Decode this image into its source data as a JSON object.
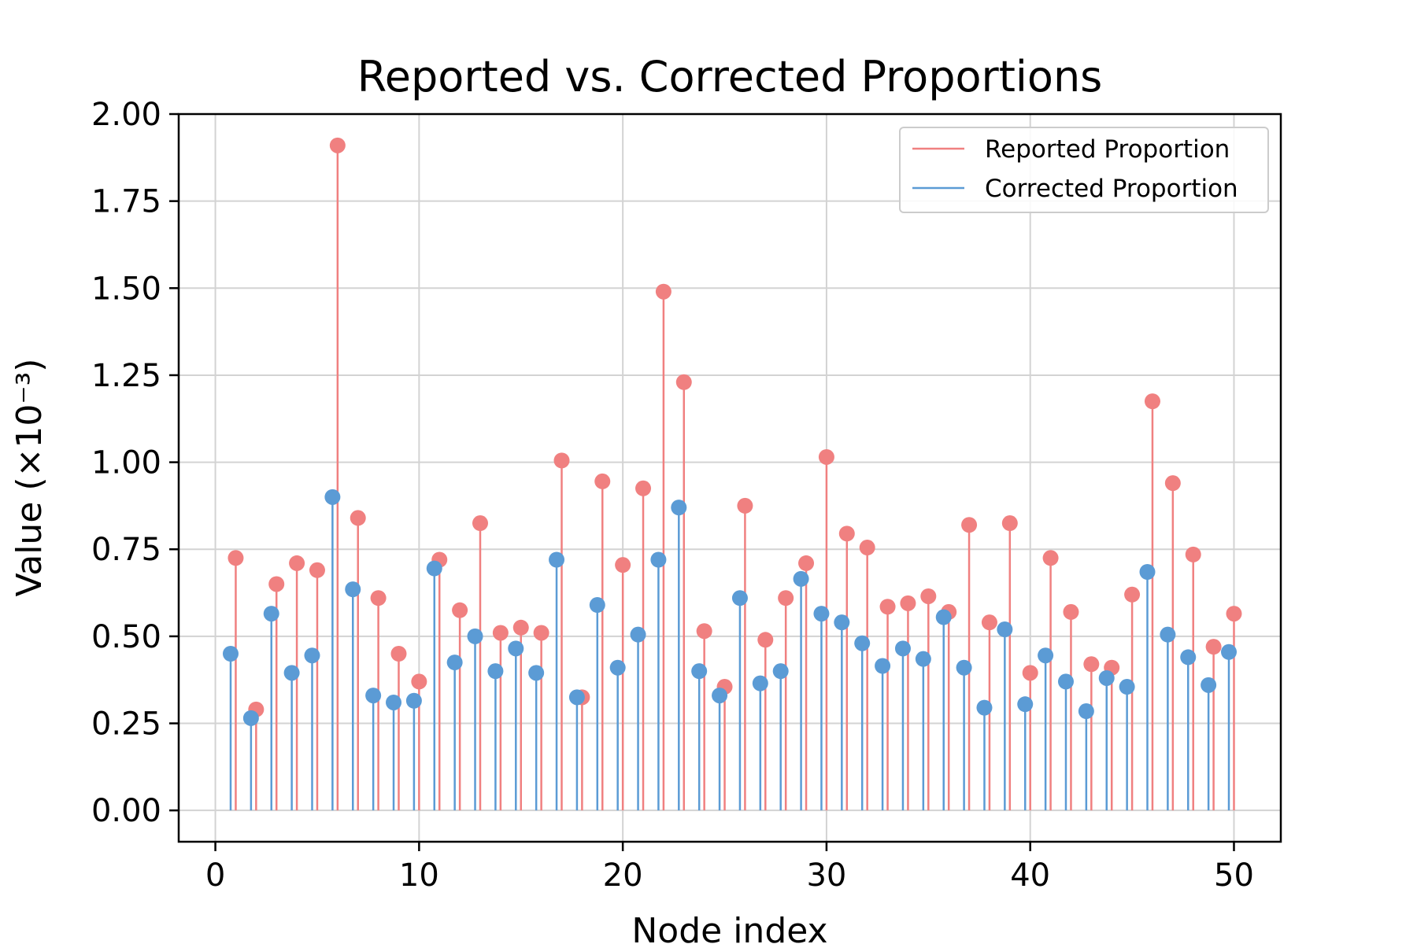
{
  "chart_data": {
    "type": "stem",
    "title": "Reported vs. Corrected Proportions",
    "xlabel": "Node index",
    "ylabel": "Value (×10⁻³)",
    "xlim": [
      -1.8,
      52.3
    ],
    "ylim": [
      -0.09,
      2.0
    ],
    "x_ticks": [
      "0",
      "10",
      "20",
      "30",
      "40",
      "50"
    ],
    "y_ticks": [
      "0.00",
      "0.25",
      "0.50",
      "0.75",
      "1.00",
      "1.25",
      "1.50",
      "1.75",
      "2.00"
    ],
    "grid": true,
    "legend_position": "top-right",
    "series": [
      {
        "name": "Reported Proportion",
        "color": "#f08080",
        "x": [
          1,
          2,
          3,
          4,
          5,
          6,
          7,
          8,
          9,
          10,
          11,
          12,
          13,
          14,
          15,
          16,
          17,
          18,
          19,
          20,
          21,
          22,
          23,
          24,
          25,
          26,
          27,
          28,
          29,
          30,
          31,
          32,
          33,
          34,
          35,
          36,
          37,
          38,
          39,
          40,
          41,
          42,
          43,
          44,
          45,
          46,
          47,
          48,
          49,
          50
        ],
        "values": [
          0.725,
          0.29,
          0.65,
          0.71,
          0.69,
          1.91,
          0.84,
          0.61,
          0.45,
          0.37,
          0.72,
          0.575,
          0.825,
          0.51,
          0.525,
          0.51,
          1.005,
          0.325,
          0.945,
          0.705,
          0.925,
          1.49,
          1.23,
          0.515,
          0.355,
          0.875,
          0.49,
          0.61,
          0.71,
          1.015,
          0.795,
          0.755,
          0.585,
          0.595,
          0.615,
          0.57,
          0.82,
          0.54,
          0.825,
          0.395,
          0.725,
          0.57,
          0.42,
          0.41,
          0.62,
          1.175,
          0.94,
          0.735,
          0.47,
          0.565
        ]
      },
      {
        "name": "Corrected Proportion",
        "color": "#5b9bd5",
        "x": [
          0.75,
          1.75,
          2.75,
          3.75,
          4.75,
          5.75,
          6.75,
          7.75,
          8.75,
          9.75,
          10.75,
          11.75,
          12.75,
          13.75,
          14.75,
          15.75,
          16.75,
          17.75,
          18.75,
          19.75,
          20.75,
          21.75,
          22.75,
          23.75,
          24.75,
          25.75,
          26.75,
          27.75,
          28.75,
          29.75,
          30.75,
          31.75,
          32.75,
          33.75,
          34.75,
          35.75,
          36.75,
          37.75,
          38.75,
          39.75,
          40.75,
          41.75,
          42.75,
          43.75,
          44.75,
          45.75,
          46.75,
          47.75,
          48.75,
          49.75
        ],
        "values": [
          0.45,
          0.265,
          0.565,
          0.395,
          0.445,
          0.9,
          0.635,
          0.33,
          0.31,
          0.315,
          0.695,
          0.425,
          0.5,
          0.4,
          0.465,
          0.395,
          0.72,
          0.325,
          0.59,
          0.41,
          0.505,
          0.72,
          0.87,
          0.4,
          0.33,
          0.61,
          0.365,
          0.4,
          0.665,
          0.565,
          0.54,
          0.48,
          0.415,
          0.465,
          0.435,
          0.555,
          0.41,
          0.295,
          0.52,
          0.305,
          0.445,
          0.37,
          0.285,
          0.38,
          0.355,
          0.685,
          0.505,
          0.44,
          0.36,
          0.455
        ]
      }
    ]
  }
}
